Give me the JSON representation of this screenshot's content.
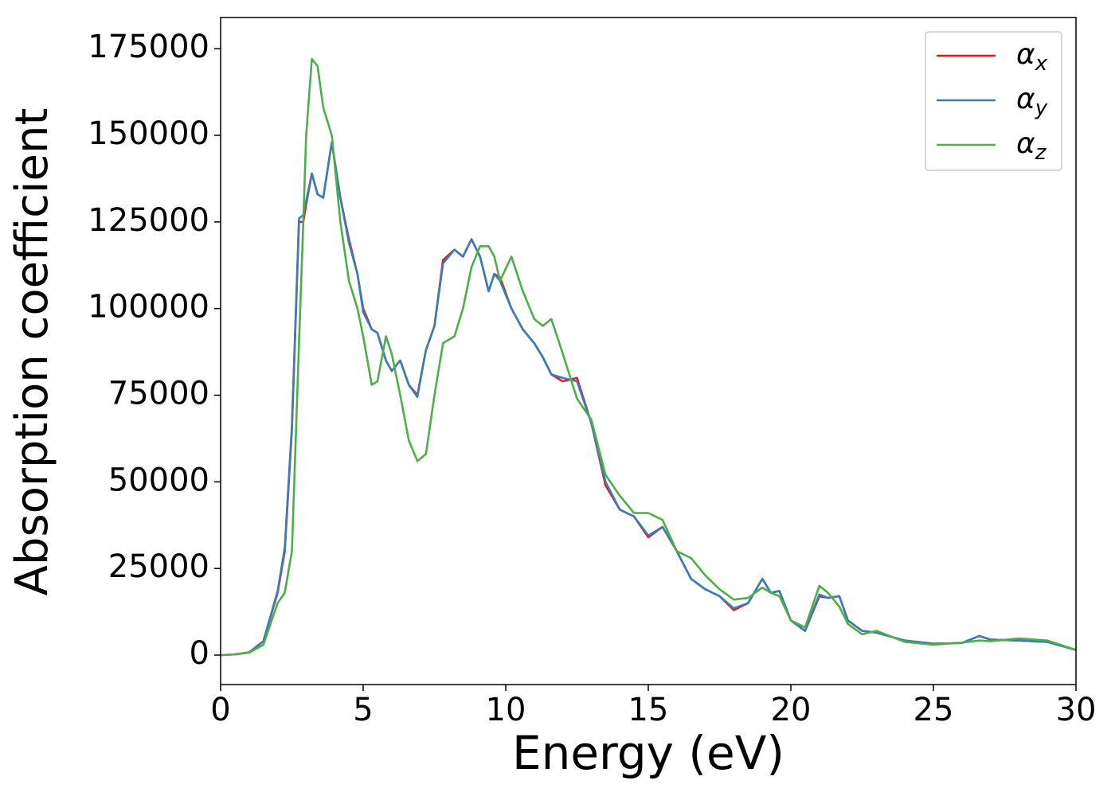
{
  "chart_data": {
    "type": "line",
    "xlabel": "Energy (eV)",
    "ylabel": "Absorption coefficient",
    "x": [
      0,
      0.5,
      1,
      1.5,
      2,
      2.25,
      2.5,
      2.75,
      2.9,
      3.0,
      3.2,
      3.4,
      3.6,
      3.9,
      4.2,
      4.5,
      4.8,
      5.0,
      5.3,
      5.5,
      5.8,
      6.0,
      6.3,
      6.6,
      6.9,
      7.2,
      7.5,
      7.8,
      8.2,
      8.5,
      8.8,
      9.1,
      9.4,
      9.6,
      9.8,
      10.2,
      10.6,
      11.0,
      11.3,
      11.6,
      12.0,
      12.5,
      13.0,
      13.5,
      14.0,
      14.5,
      15.0,
      15.5,
      16.0,
      16.5,
      17.0,
      17.5,
      18.0,
      18.5,
      19.0,
      19.3,
      19.6,
      20.0,
      20.5,
      21.0,
      21.3,
      21.7,
      22.0,
      22.5,
      23.0,
      24,
      25,
      26,
      26.6,
      27,
      28,
      29,
      30
    ],
    "series": [
      {
        "name": "αx",
        "color": "#e41a1c",
        "values": [
          0,
          200,
          800,
          4000,
          18000,
          30000,
          65000,
          125000,
          125000,
          130000,
          139000,
          133000,
          132000,
          148000,
          132000,
          120000,
          110000,
          100000,
          94000,
          93000,
          85000,
          82000,
          85000,
          78000,
          75000,
          88000,
          95000,
          114000,
          117000,
          115000,
          120000,
          115000,
          105000,
          110000,
          109000,
          100000,
          94000,
          90000,
          86000,
          81000,
          79000,
          80000,
          67000,
          49000,
          42000,
          40000,
          34000,
          37000,
          30000,
          22000,
          19000,
          17000,
          13000,
          15000,
          22000,
          18000,
          18500,
          10000,
          7000,
          17000,
          16500,
          17000,
          10000,
          7000,
          6500,
          4200,
          3300,
          3500,
          5500,
          4500,
          4200,
          3800,
          1500
        ]
      },
      {
        "name": "αy",
        "color": "#377eb8",
        "values": [
          0,
          200,
          800,
          4000,
          18500,
          31000,
          66000,
          126000,
          127000,
          131000,
          139000,
          133000,
          132000,
          148000,
          132000,
          119000,
          110000,
          99000,
          94000,
          93000,
          85000,
          82000,
          85000,
          78000,
          74500,
          88000,
          95000,
          113000,
          117000,
          115000,
          120000,
          115000,
          105000,
          110000,
          108000,
          100000,
          94000,
          90000,
          86000,
          81000,
          80000,
          79000,
          67000,
          50000,
          42000,
          40000,
          34500,
          37000,
          30000,
          22000,
          19000,
          17000,
          13500,
          15000,
          22000,
          18000,
          18500,
          10000,
          7000,
          17500,
          16500,
          17000,
          10000,
          7000,
          6500,
          4200,
          3300,
          3500,
          5500,
          4500,
          4200,
          3800,
          1500
        ]
      },
      {
        "name": "αz",
        "color": "#4daf4a",
        "values": [
          0,
          200,
          700,
          3000,
          15000,
          18000,
          30000,
          90000,
          125000,
          150000,
          172000,
          170000,
          158000,
          150000,
          125000,
          108000,
          100000,
          92000,
          78000,
          79000,
          92000,
          87000,
          75000,
          62000,
          56000,
          58000,
          75000,
          90000,
          92000,
          100000,
          112000,
          118000,
          118000,
          115000,
          108000,
          115000,
          105000,
          97000,
          95000,
          97000,
          87000,
          74000,
          68000,
          52000,
          46000,
          41000,
          41000,
          39000,
          30000,
          28000,
          23000,
          19000,
          16000,
          16500,
          19500,
          18000,
          17000,
          10000,
          8000,
          20000,
          18000,
          14000,
          9000,
          6000,
          7000,
          3800,
          3000,
          3600,
          4200,
          4000,
          4800,
          4200,
          1500
        ]
      }
    ],
    "xlim": [
      0,
      30
    ],
    "xticks": [
      0,
      5,
      10,
      15,
      20,
      25,
      30
    ],
    "ylim": [
      -8500,
      184000
    ],
    "yticks": [
      0,
      25000,
      50000,
      75000,
      100000,
      125000,
      150000,
      175000
    ],
    "grid": false,
    "legend": "upper right"
  }
}
